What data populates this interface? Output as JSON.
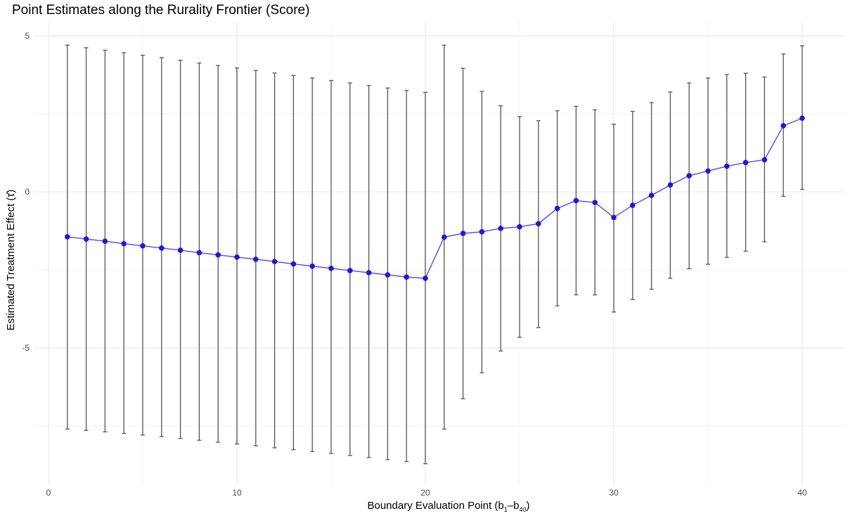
{
  "chart_data": {
    "type": "line",
    "title": "Point Estimates along the Rurality Frontier (Score)",
    "xlabel": {
      "main": "Boundary Evaluation Point (b",
      "sub1": "1",
      "dash": "–b",
      "sub2": "40",
      "close": ")"
    },
    "ylabel": {
      "main": "Estimated Treatment Effect (",
      "sym": "τ̂",
      "close": ")"
    },
    "xlim": [
      0,
      40
    ],
    "ylim": [
      -9.25,
      5.3
    ],
    "x_ticks": [
      0,
      10,
      20,
      30,
      40
    ],
    "y_ticks": [
      5,
      0,
      -5
    ],
    "x_tick_labels": [
      "0",
      "10",
      "20",
      "30",
      "40"
    ],
    "y_tick_labels": [
      "5",
      "0",
      "-5"
    ],
    "grid": true,
    "line_color": "#4b4bf0",
    "point_color": "#1a1adb",
    "errorbar_color": "#555555",
    "x": [
      1,
      2,
      3,
      4,
      5,
      6,
      7,
      8,
      9,
      10,
      11,
      12,
      13,
      14,
      15,
      16,
      17,
      18,
      19,
      20,
      21,
      22,
      23,
      24,
      25,
      26,
      27,
      28,
      29,
      30,
      31,
      32,
      33,
      34,
      35,
      36,
      37,
      38,
      39,
      40
    ],
    "estimate": [
      -1.44,
      -1.51,
      -1.58,
      -1.66,
      -1.73,
      -1.8,
      -1.87,
      -1.95,
      -2.02,
      -2.09,
      -2.16,
      -2.23,
      -2.31,
      -2.38,
      -2.45,
      -2.52,
      -2.59,
      -2.66,
      -2.73,
      -2.77,
      -1.45,
      -1.33,
      -1.28,
      -1.17,
      -1.12,
      -1.02,
      -0.53,
      -0.28,
      -0.34,
      -0.82,
      -0.43,
      -0.11,
      0.22,
      0.52,
      0.67,
      0.82,
      0.94,
      1.03,
      2.12,
      2.36
    ],
    "lower": [
      -7.6,
      -7.64,
      -7.69,
      -7.74,
      -7.79,
      -7.84,
      -7.9,
      -7.96,
      -8.02,
      -8.08,
      -8.14,
      -8.2,
      -8.26,
      -8.32,
      -8.38,
      -8.45,
      -8.51,
      -8.58,
      -8.64,
      -8.71,
      -7.6,
      -6.63,
      -5.8,
      -5.1,
      -4.66,
      -4.35,
      -3.65,
      -3.3,
      -3.3,
      -3.85,
      -3.45,
      -3.12,
      -2.77,
      -2.46,
      -2.32,
      -2.1,
      -1.9,
      -1.6,
      -0.14,
      0.08
    ],
    "upper": [
      4.7,
      4.62,
      4.54,
      4.46,
      4.38,
      4.3,
      4.22,
      4.13,
      4.05,
      3.97,
      3.89,
      3.81,
      3.73,
      3.65,
      3.57,
      3.49,
      3.41,
      3.33,
      3.25,
      3.19,
      4.7,
      3.96,
      3.22,
      2.76,
      2.41,
      2.28,
      2.6,
      2.74,
      2.63,
      2.17,
      2.58,
      2.86,
      3.2,
      3.49,
      3.65,
      3.76,
      3.8,
      3.68,
      4.42,
      4.68
    ]
  }
}
